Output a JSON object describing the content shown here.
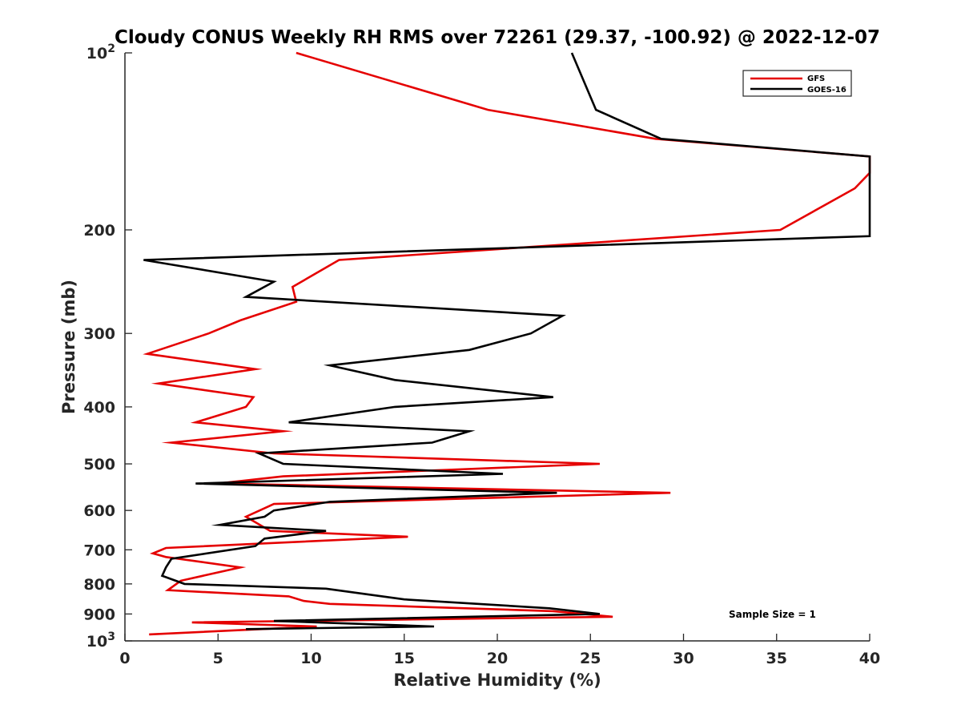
{
  "chart_data": {
    "type": "line",
    "title": "Cloudy CONUS Weekly RH RMS over 72261 (29.37, -100.92) @ 2022-12-07",
    "xlabel": "Relative Humidity (%)",
    "ylabel": "Pressure (mb)",
    "xlim": [
      0,
      40
    ],
    "ylim": [
      100,
      1000
    ],
    "y_scale": "log",
    "y_reversed": true,
    "grid": false,
    "legend_position": "top-right",
    "annotation": "Sample Size = 1",
    "x_ticks": [
      "0",
      "5",
      "10",
      "15",
      "20",
      "25",
      "30",
      "35",
      "40"
    ],
    "y_ticks": [
      {
        "value": 100,
        "base": "10",
        "exp": "2"
      },
      {
        "value": 200,
        "label": "200"
      },
      {
        "value": 300,
        "label": "300"
      },
      {
        "value": 400,
        "label": "400"
      },
      {
        "value": 500,
        "label": "500"
      },
      {
        "value": 600,
        "label": "600"
      },
      {
        "value": 700,
        "label": "700"
      },
      {
        "value": 800,
        "label": "800"
      },
      {
        "value": 900,
        "label": "900"
      },
      {
        "value": 1000,
        "base": "10",
        "exp": "3"
      }
    ],
    "series": [
      {
        "name": "GFS",
        "color": "#e50000",
        "points": [
          [
            9.2,
            100
          ],
          [
            19.5,
            125
          ],
          [
            28.5,
            140
          ],
          [
            40,
            150
          ],
          [
            40,
            160
          ],
          [
            39.2,
            170
          ],
          [
            35.2,
            200
          ],
          [
            11.5,
            225
          ],
          [
            9.0,
            250
          ],
          [
            9.2,
            265
          ],
          [
            6.2,
            285
          ],
          [
            4.5,
            300
          ],
          [
            1.2,
            325
          ],
          [
            7.0,
            345
          ],
          [
            1.8,
            365
          ],
          [
            6.9,
            385
          ],
          [
            6.5,
            400
          ],
          [
            3.8,
            425
          ],
          [
            8.5,
            440
          ],
          [
            2.5,
            460
          ],
          [
            8.0,
            480
          ],
          [
            25.5,
            500
          ],
          [
            8.5,
            525
          ],
          [
            5.0,
            540
          ],
          [
            29.3,
            560
          ],
          [
            8.0,
            585
          ],
          [
            6.5,
            615
          ],
          [
            7.8,
            650
          ],
          [
            15.2,
            665
          ],
          [
            2.2,
            695
          ],
          [
            1.5,
            710
          ],
          [
            2.2,
            720
          ],
          [
            6.2,
            750
          ],
          [
            3.0,
            790
          ],
          [
            2.3,
            820
          ],
          [
            8.8,
            840
          ],
          [
            9.6,
            855
          ],
          [
            11.0,
            865
          ],
          [
            23.0,
            890
          ],
          [
            26.2,
            910
          ],
          [
            3.6,
            930
          ],
          [
            10.3,
            945
          ],
          [
            1.3,
            975
          ]
        ]
      },
      {
        "name": "GOES-16",
        "color": "#000000",
        "points": [
          [
            24.0,
            100
          ],
          [
            25.3,
            125
          ],
          [
            28.8,
            140
          ],
          [
            40,
            150
          ],
          [
            40,
            205
          ],
          [
            1.0,
            225
          ],
          [
            8.0,
            245
          ],
          [
            6.5,
            260
          ],
          [
            23.5,
            280
          ],
          [
            21.8,
            300
          ],
          [
            18.5,
            320
          ],
          [
            11.0,
            340
          ],
          [
            14.5,
            360
          ],
          [
            23.0,
            385
          ],
          [
            14.5,
            400
          ],
          [
            8.8,
            425
          ],
          [
            18.5,
            440
          ],
          [
            16.5,
            460
          ],
          [
            7.2,
            480
          ],
          [
            8.5,
            500
          ],
          [
            20.3,
            520
          ],
          [
            3.8,
            540
          ],
          [
            23.2,
            560
          ],
          [
            11.0,
            580
          ],
          [
            8.0,
            600
          ],
          [
            7.5,
            615
          ],
          [
            5.1,
            635
          ],
          [
            10.8,
            650
          ],
          [
            7.5,
            670
          ],
          [
            7.0,
            690
          ],
          [
            2.5,
            725
          ],
          [
            2.2,
            750
          ],
          [
            2.0,
            775
          ],
          [
            3.2,
            800
          ],
          [
            10.8,
            815
          ],
          [
            15.0,
            850
          ],
          [
            22.8,
            880
          ],
          [
            25.5,
            900
          ],
          [
            8.0,
            925
          ],
          [
            16.6,
            945
          ],
          [
            6.5,
            955
          ]
        ]
      }
    ]
  }
}
